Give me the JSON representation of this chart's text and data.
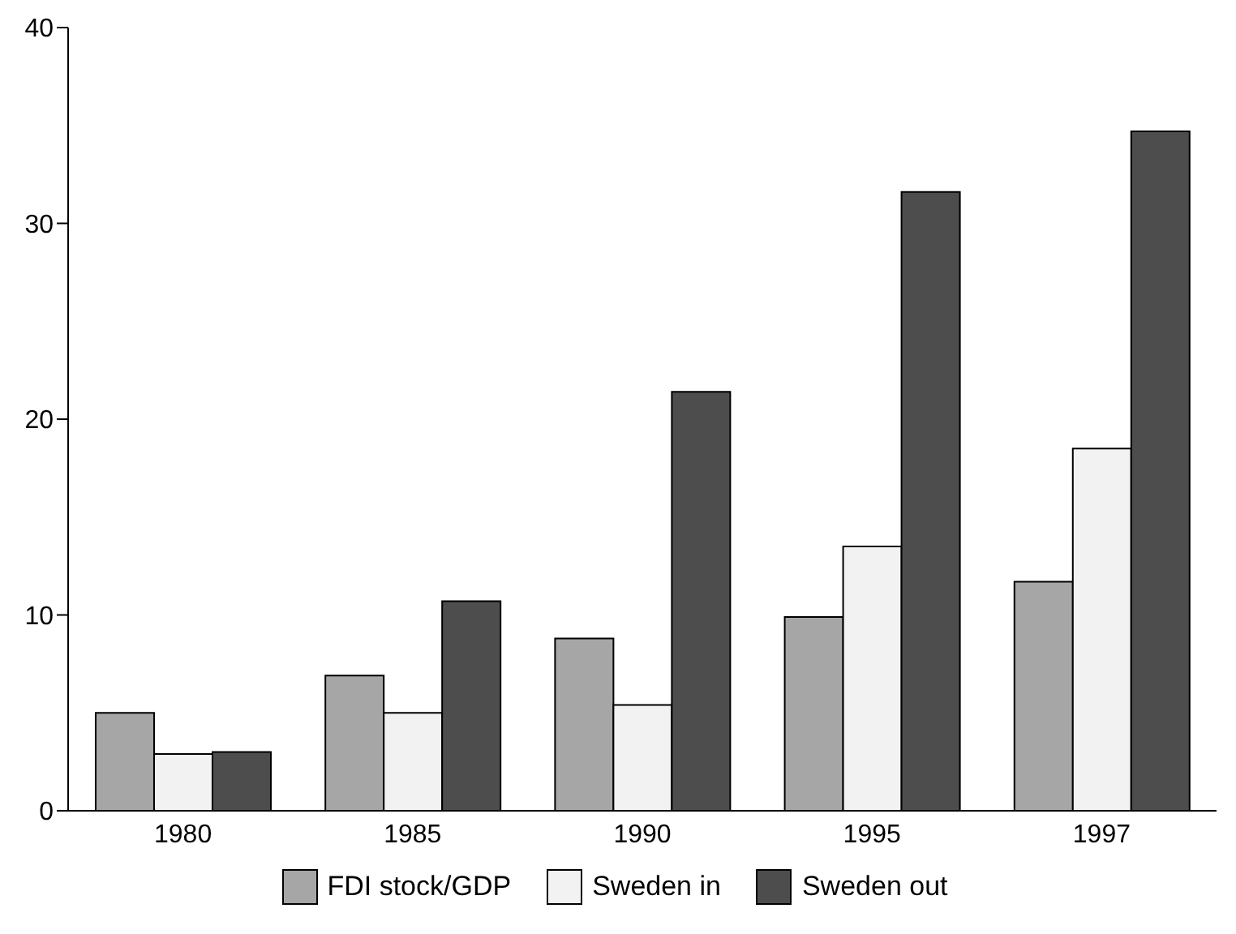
{
  "chart_data": {
    "type": "bar",
    "categories": [
      "1980",
      "1985",
      "1990",
      "1995",
      "1997"
    ],
    "series": [
      {
        "name": "FDI stock/GDP",
        "color": "#a6a6a6",
        "values": [
          5.0,
          6.9,
          8.8,
          9.9,
          11.7
        ]
      },
      {
        "name": "Sweden in",
        "color": "#f2f2f2",
        "values": [
          2.9,
          5.0,
          5.4,
          13.5,
          18.5
        ]
      },
      {
        "name": "Sweden out",
        "color": "#4d4d4d",
        "values": [
          3.0,
          10.7,
          21.4,
          31.6,
          34.7
        ]
      }
    ],
    "ylim": [
      0,
      40
    ],
    "yticks": [
      0,
      10,
      20,
      30,
      40
    ],
    "grid": false,
    "legend": "bottom"
  }
}
